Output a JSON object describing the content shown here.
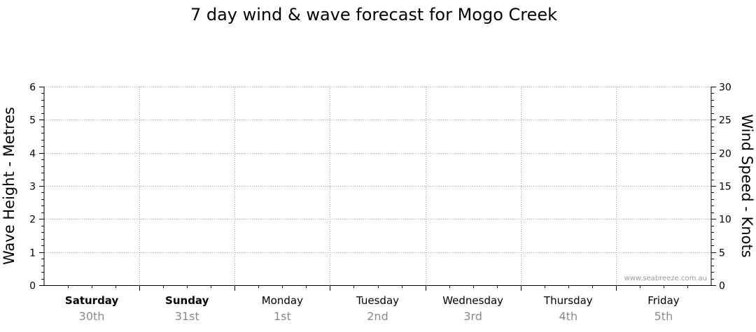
{
  "chart_data": {
    "type": "line",
    "title": "7 day wind & wave forecast for Mogo Creek",
    "ylabel_left": "Wave Height - Metres",
    "ylabel_right": "Wind Speed - Knots",
    "ylim_left": [
      0,
      6
    ],
    "ylim_right": [
      0,
      30
    ],
    "yticks_left": [
      "0",
      "1",
      "2",
      "3",
      "4",
      "5",
      "6"
    ],
    "yticks_right": [
      "0",
      "5",
      "10",
      "15",
      "20",
      "25",
      "30"
    ],
    "grid": true,
    "days": [
      {
        "name": "Saturday",
        "date": "30th",
        "bold": true
      },
      {
        "name": "Sunday",
        "date": "31st",
        "bold": true
      },
      {
        "name": "Monday",
        "date": "1st",
        "bold": false
      },
      {
        "name": "Tuesday",
        "date": "2nd",
        "bold": false
      },
      {
        "name": "Wednesday",
        "date": "3rd",
        "bold": false
      },
      {
        "name": "Thursday",
        "date": "4th",
        "bold": false
      },
      {
        "name": "Friday",
        "date": "5th",
        "bold": false
      }
    ],
    "series": [],
    "watermark": "www.seabreeze.com.au"
  }
}
